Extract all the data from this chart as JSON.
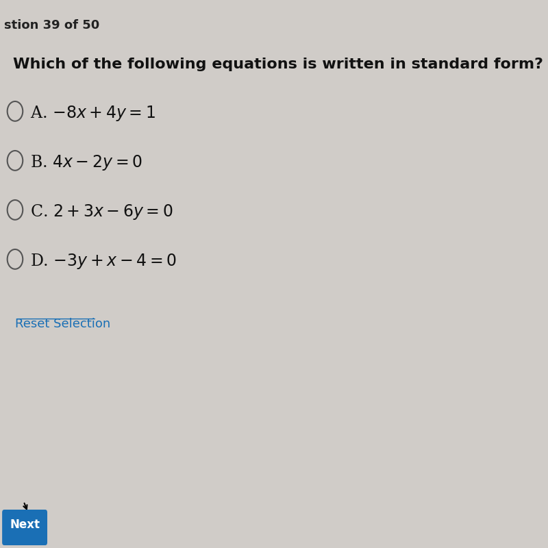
{
  "header": "stion 39 of 50",
  "question": "Which of the following equations is written in standard form?",
  "options": [
    {
      "label": "A.",
      "equation": "$-8x + 4y = 1$"
    },
    {
      "label": "B.",
      "equation": "$4x - 2y = 0$"
    },
    {
      "label": "C.",
      "equation": "$2 + 3x - 6y = 0$"
    },
    {
      "label": "D.",
      "equation": "$-3y + x - 4 = 0$"
    }
  ],
  "reset_text": "Reset Selection",
  "bg_color": "#d0ccc8",
  "text_color": "#1a1a1a",
  "header_color": "#222222",
  "question_color": "#111111",
  "option_color": "#111111",
  "reset_color": "#1a6fb5",
  "header_fontsize": 13,
  "question_fontsize": 16,
  "option_fontsize": 17,
  "reset_fontsize": 13,
  "next_button_color": "#1a6fb5",
  "next_button_text": "Next",
  "next_text_color": "#ffffff"
}
